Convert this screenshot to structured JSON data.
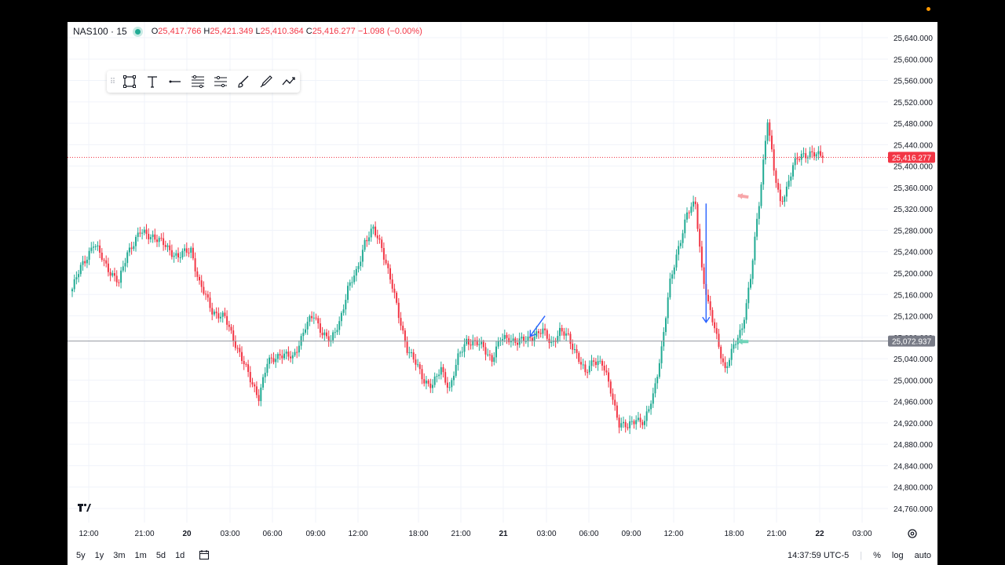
{
  "legend": {
    "symbol": "NAS100 · 15",
    "o_label": "O",
    "o_value": "25,417.766",
    "h_label": "H",
    "h_value": "25,421.349",
    "l_label": "L",
    "l_value": "25,410.364",
    "c_label": "C",
    "c_value": "25,416.277",
    "change": "−1.098 (−0.00%)"
  },
  "toolbar": {
    "tools": [
      "rectangle-icon",
      "text-icon",
      "line-icon",
      "fib-retracement-icon",
      "channel-icon",
      "brush-icon",
      "pen-icon",
      "path-icon"
    ]
  },
  "price_axis": {
    "ticks": [
      "25,640.000",
      "25,600.000",
      "25,560.000",
      "25,520.000",
      "25,480.000",
      "25,440.000",
      "25,400.000",
      "25,360.000",
      "25,320.000",
      "25,280.000",
      "25,240.000",
      "25,200.000",
      "25,160.000",
      "25,120.000",
      "25,080.000",
      "25,040.000",
      "25,000.000",
      "24,960.000",
      "24,920.000",
      "24,880.000",
      "24,840.000",
      "24,800.000",
      "24,760.000"
    ],
    "current_label": "25,416.277",
    "current_color": "#f23645",
    "cursor_label": "25,072.937",
    "cursor_color": "#787b86"
  },
  "time_axis": {
    "labels": [
      "12:00",
      "21:00",
      "20",
      "03:00",
      "06:00",
      "09:00",
      "12:00",
      "18:00",
      "21:00",
      "21",
      "03:00",
      "06:00",
      "09:00",
      "12:00",
      "18:00",
      "21:00",
      "22",
      "03:00"
    ]
  },
  "bottom_bar": {
    "ranges": [
      "5y",
      "1y",
      "3m",
      "1m",
      "5d",
      "1d"
    ],
    "clock": "14:37:59 UTC-5",
    "percent": "%",
    "log": "log",
    "auto": "auto"
  },
  "chart_data": {
    "type": "candlestick",
    "symbol": "NAS100",
    "interval": "15",
    "ylim": [
      24740,
      25660
    ],
    "up_color": "#22ab94",
    "down_color": "#f23645",
    "current_price": 25416.277,
    "cursor_price": 25072.937,
    "anchors": [
      [
        0,
        25170
      ],
      [
        4,
        25210
      ],
      [
        10,
        25255
      ],
      [
        16,
        25215
      ],
      [
        22,
        25180
      ],
      [
        26,
        25240
      ],
      [
        32,
        25275
      ],
      [
        38,
        25270
      ],
      [
        44,
        25250
      ],
      [
        50,
        25230
      ],
      [
        56,
        25245
      ],
      [
        60,
        25180
      ],
      [
        66,
        25130
      ],
      [
        72,
        25115
      ],
      [
        78,
        25060
      ],
      [
        84,
        25000
      ],
      [
        88,
        24970
      ],
      [
        92,
        25030
      ],
      [
        98,
        25050
      ],
      [
        104,
        25040
      ],
      [
        110,
        25100
      ],
      [
        114,
        25120
      ],
      [
        118,
        25090
      ],
      [
        122,
        25070
      ],
      [
        126,
        25110
      ],
      [
        130,
        25170
      ],
      [
        134,
        25200
      ],
      [
        138,
        25260
      ],
      [
        142,
        25280
      ],
      [
        146,
        25250
      ],
      [
        150,
        25190
      ],
      [
        154,
        25120
      ],
      [
        158,
        25060
      ],
      [
        162,
        25030
      ],
      [
        166,
        25000
      ],
      [
        170,
        24990
      ],
      [
        174,
        25020
      ],
      [
        178,
        24985
      ],
      [
        182,
        25040
      ],
      [
        186,
        25075
      ],
      [
        190,
        25070
      ],
      [
        194,
        25060
      ],
      [
        198,
        25040
      ],
      [
        202,
        25075
      ],
      [
        206,
        25080
      ],
      [
        210,
        25070
      ],
      [
        214,
        25075
      ],
      [
        218,
        25085
      ],
      [
        222,
        25090
      ],
      [
        226,
        25070
      ],
      [
        230,
        25090
      ],
      [
        234,
        25080
      ],
      [
        238,
        25050
      ],
      [
        242,
        25010
      ],
      [
        246,
        25040
      ],
      [
        250,
        25030
      ],
      [
        254,
        24980
      ],
      [
        258,
        24920
      ],
      [
        262,
        24910
      ],
      [
        266,
        24930
      ],
      [
        270,
        24920
      ],
      [
        274,
        24970
      ],
      [
        278,
        25060
      ],
      [
        282,
        25180
      ],
      [
        286,
        25250
      ],
      [
        290,
        25310
      ],
      [
        294,
        25330
      ],
      [
        297,
        25210
      ],
      [
        300,
        25140
      ],
      [
        304,
        25080
      ],
      [
        308,
        25020
      ],
      [
        312,
        25060
      ],
      [
        316,
        25100
      ],
      [
        320,
        25190
      ],
      [
        324,
        25330
      ],
      [
        328,
        25490
      ],
      [
        331,
        25390
      ],
      [
        334,
        25330
      ],
      [
        337,
        25360
      ],
      [
        340,
        25400
      ],
      [
        344,
        25420
      ],
      [
        348,
        25425
      ],
      [
        352,
        25418
      ],
      [
        354,
        25416
      ]
    ],
    "annotations": [
      {
        "type": "arrow",
        "color": "#2962ff",
        "from": [
          223,
          25120
        ],
        "to": [
          216,
          25082
        ]
      },
      {
        "type": "arrow",
        "color": "#2962ff",
        "from": [
          299,
          25330
        ],
        "to": [
          299,
          25108
        ]
      },
      {
        "type": "arrow",
        "color": "#f7a6a9",
        "from": [
          319,
          25342
        ],
        "to": [
          314,
          25345
        ]
      },
      {
        "type": "arrow",
        "color": "#6fd3b8",
        "from": [
          319,
          25072
        ],
        "to": [
          314,
          25072
        ]
      }
    ]
  }
}
